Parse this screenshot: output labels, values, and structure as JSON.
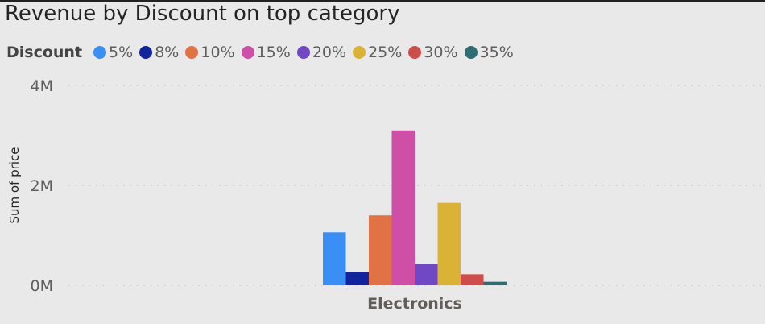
{
  "chart_data": {
    "type": "bar",
    "title": "Revenue by Discount on top category",
    "legend_title": "Discount",
    "legend_position": "top-left",
    "xlabel": "",
    "ylabel": "Sum of price",
    "categories": [
      "Electronics"
    ],
    "ylim": [
      0,
      4000000
    ],
    "yticks": [
      {
        "value": 0,
        "label": "0M"
      },
      {
        "value": 2000000,
        "label": "2M"
      },
      {
        "value": 4000000,
        "label": "4M"
      }
    ],
    "grid": true,
    "series": [
      {
        "name": "5%",
        "color": "#3a8ff5",
        "values": [
          1060000
        ]
      },
      {
        "name": "8%",
        "color": "#12239e",
        "values": [
          270000
        ]
      },
      {
        "name": "10%",
        "color": "#e07245",
        "values": [
          1400000
        ]
      },
      {
        "name": "15%",
        "color": "#d04fa6",
        "values": [
          3100000
        ]
      },
      {
        "name": "20%",
        "color": "#7148c4",
        "values": [
          430000
        ]
      },
      {
        "name": "25%",
        "color": "#d9b236",
        "values": [
          1650000
        ]
      },
      {
        "name": "30%",
        "color": "#d04c4c",
        "values": [
          220000
        ]
      },
      {
        "name": "35%",
        "color": "#2e6e72",
        "values": [
          70000
        ]
      }
    ]
  }
}
